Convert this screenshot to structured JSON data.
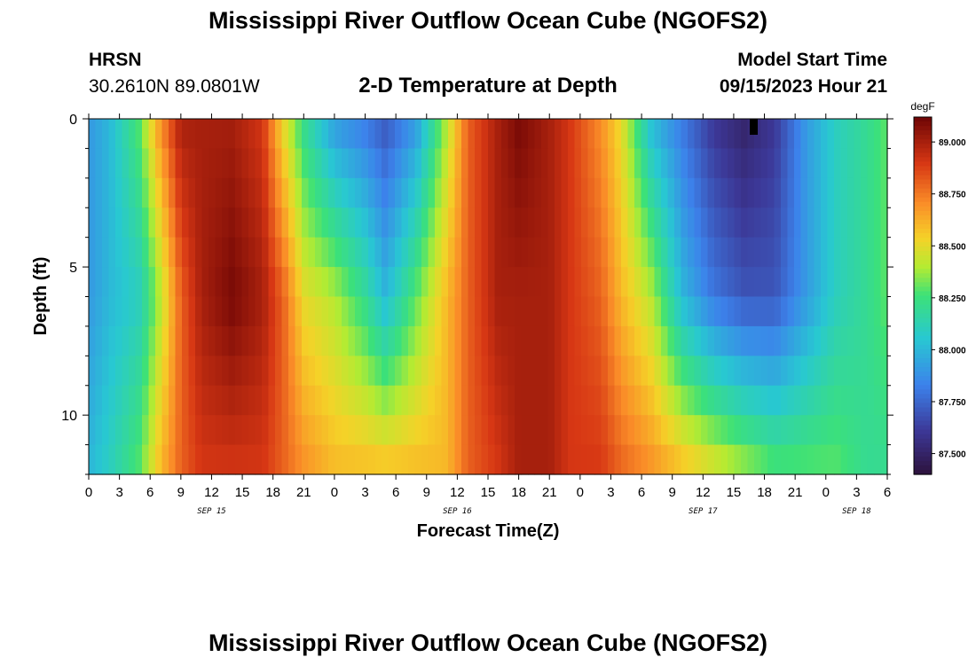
{
  "header": {
    "title": "Mississippi River Outflow Ocean Cube (NGOFS2)",
    "station": "HRSN",
    "coords": "30.2610N  89.0801W",
    "subtitle": "2-D Temperature at Depth",
    "model_start_label": "Model Start Time",
    "model_start_value": "09/15/2023 Hour 21"
  },
  "footer": {
    "title": "Mississippi River Outflow Ocean Cube (NGOFS2)"
  },
  "chart_data": {
    "type": "heatmap",
    "title": "2-D Temperature at Depth",
    "xlabel": "Forecast Time(Z)",
    "ylabel": "Depth (ft)",
    "x_ticks": [
      "0",
      "3",
      "6",
      "9",
      "12",
      "15",
      "18",
      "21",
      "0",
      "3",
      "6",
      "9",
      "12",
      "15",
      "18",
      "21",
      "0",
      "3",
      "6",
      "9",
      "12",
      "15",
      "18",
      "21",
      "0",
      "3",
      "6"
    ],
    "x_range_hours": [
      0,
      78
    ],
    "date_labels": [
      {
        "text": "SEP 15",
        "hour": 12
      },
      {
        "text": "SEP 16",
        "hour": 36
      },
      {
        "text": "SEP 17",
        "hour": 60
      },
      {
        "text": "SEP 18",
        "hour": 75
      }
    ],
    "y_ticks": [
      "0",
      "5",
      "10"
    ],
    "y_tick_values": [
      0,
      5,
      10
    ],
    "ylim": [
      0,
      12
    ],
    "colorbar": {
      "unit": "degF",
      "ticks": [
        "89.000",
        "88.750",
        "88.500",
        "88.250",
        "88.000",
        "87.750",
        "87.500"
      ],
      "tick_values": [
        89.0,
        88.75,
        88.5,
        88.25,
        88.0,
        87.75,
        87.5
      ],
      "range": [
        87.4,
        89.12
      ]
    },
    "profile": {
      "time_hours": [
        0,
        2,
        5,
        7,
        9,
        11,
        14,
        17,
        19,
        21,
        24,
        27,
        29,
        32,
        35,
        37,
        40,
        42,
        45,
        47,
        50,
        52,
        55,
        58,
        61,
        64,
        67,
        70,
        73,
        76,
        78
      ],
      "surface_degF": [
        87.9,
        88.0,
        88.3,
        88.7,
        89.0,
        89.0,
        89.0,
        88.9,
        88.5,
        88.2,
        87.9,
        87.8,
        87.7,
        87.9,
        88.4,
        88.8,
        89.0,
        89.1,
        89.0,
        88.9,
        88.7,
        88.5,
        88.0,
        87.8,
        87.6,
        87.5,
        87.6,
        87.9,
        88.1,
        88.2,
        88.3
      ],
      "mid_degF": [
        87.9,
        88.0,
        88.1,
        88.4,
        88.8,
        89.0,
        89.1,
        89.0,
        88.8,
        88.5,
        88.4,
        88.2,
        88.0,
        88.3,
        88.6,
        88.8,
        89.0,
        89.0,
        89.0,
        88.9,
        88.8,
        88.6,
        88.4,
        88.0,
        87.8,
        87.7,
        87.7,
        87.9,
        88.1,
        88.2,
        88.3
      ],
      "bottom_degF": [
        88.0,
        88.1,
        88.3,
        88.6,
        88.8,
        88.9,
        88.9,
        88.9,
        88.8,
        88.7,
        88.6,
        88.6,
        88.6,
        88.6,
        88.6,
        88.8,
        88.9,
        89.0,
        89.0,
        88.9,
        88.9,
        88.8,
        88.7,
        88.6,
        88.5,
        88.4,
        88.3,
        88.3,
        88.3,
        88.2,
        88.2
      ]
    }
  }
}
